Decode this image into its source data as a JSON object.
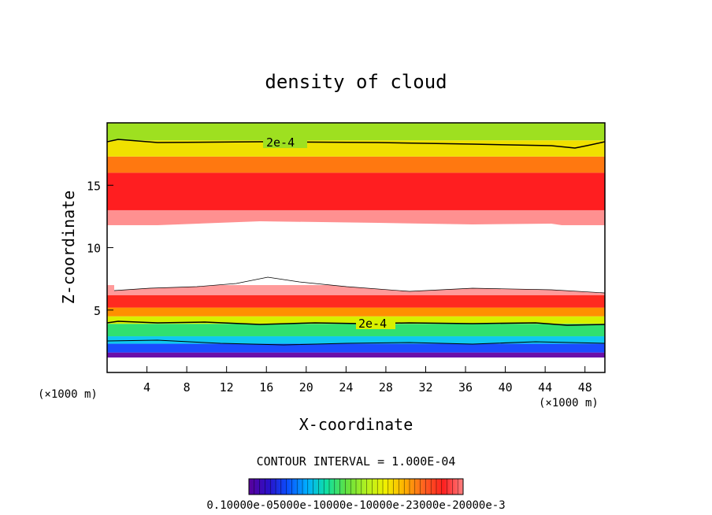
{
  "chart_data": {
    "type": "heatmap",
    "title": "density of cloud",
    "xlabel": "X-coordinate",
    "ylabel": "Z-coordinate",
    "x_unit": "(×1000 m)",
    "y_unit": "(×1000 m)",
    "xlim": [
      0,
      50
    ],
    "ylim": [
      0,
      20
    ],
    "x_ticks": [
      "4",
      "8",
      "12",
      "16",
      "20",
      "24",
      "28",
      "32",
      "36",
      "40",
      "44",
      "48"
    ],
    "y_ticks": [
      "5",
      "10",
      "15"
    ],
    "contour_label": "2e-4",
    "contour_interval": "CONTOUR INTERVAL = 1.000E-04",
    "colorbar_labels": "0.10000e-05000e-10000e-10000e-23000e-20000e-3",
    "colorbar_colors": [
      "#5a009a",
      "#2a10c8",
      "#0a50ff",
      "#00b0ff",
      "#10e0a0",
      "#60e040",
      "#b0f020",
      "#f0f000",
      "#ffb000",
      "#ff6020",
      "#ff2020",
      "#ff8080"
    ],
    "layers": [
      {
        "name": "base-purple",
        "z": [
          1.2,
          1.6
        ],
        "color": "#6a0fa8"
      },
      {
        "name": "blue",
        "z": [
          1.6,
          2.3
        ],
        "color": "#1a4cff"
      },
      {
        "name": "cyan",
        "z": [
          2.3,
          2.9
        ],
        "color": "#10c8f0"
      },
      {
        "name": "green",
        "z": [
          2.9,
          3.9
        ],
        "color": "#30e070"
      },
      {
        "name": "yellow",
        "z": [
          3.9,
          4.5
        ],
        "color": "#d8f000"
      },
      {
        "name": "orange",
        "z": [
          4.5,
          5.2
        ],
        "color": "#ff9000"
      },
      {
        "name": "red-low",
        "z": [
          5.2,
          6.2
        ],
        "color": "#ff2a20"
      },
      {
        "name": "pink-low",
        "z": [
          6.2,
          7.0
        ],
        "color": "#ff9a9a"
      },
      {
        "name": "pink-high",
        "z": [
          11.8,
          13.0
        ],
        "color": "#ff9090"
      },
      {
        "name": "red-high",
        "z": [
          13.0,
          16.0
        ],
        "color": "#ff1e20"
      },
      {
        "name": "orange-high",
        "z": [
          16.0,
          17.3
        ],
        "color": "#ff7810"
      },
      {
        "name": "yellow-high",
        "z": [
          17.3,
          18.6
        ],
        "color": "#f0e000"
      },
      {
        "name": "green-top",
        "z": [
          18.6,
          20.0
        ],
        "color": "#9ee020"
      }
    ]
  }
}
